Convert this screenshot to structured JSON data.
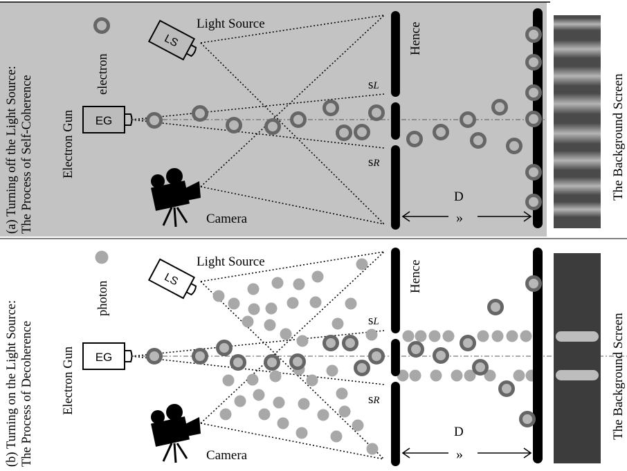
{
  "panels": [
    {
      "id": "a",
      "caption_line1": "(a) Turning off the Light Source:",
      "caption_line2": "The Process of Self-Coherence",
      "gun_label": "Electron Gun",
      "legend_label": "electron",
      "legend_kind": "electron",
      "gun_box": "EG",
      "ls_box": "LS",
      "light_source_label": "Light Source",
      "hence_label": "Hence",
      "slit_left": "s",
      "slit_left_sub": "L",
      "slit_right": "s",
      "slit_right_sub": "R",
      "camera_label": "Camera",
      "distance_label": "D",
      "distance_mark": "»",
      "screen_label": "The Background Screen",
      "background": "#c3c3c3",
      "screen_pattern": "fringes"
    },
    {
      "id": "b",
      "caption_line1": "(b) Turning on the Light Source:",
      "caption_line2": "The Process of Decoherence",
      "gun_label": "Electron Gun",
      "legend_label": "photon",
      "legend_kind": "photon",
      "gun_box": "EG",
      "ls_box": "LS",
      "light_source_label": "Light Source",
      "hence_label": "Hence",
      "slit_left": "s",
      "slit_left_sub": "L",
      "slit_right": "s",
      "slit_right_sub": "R",
      "camera_label": "Camera",
      "distance_label": "D",
      "distance_mark": "»",
      "screen_label": "The Background Screen",
      "background": "#ffffff",
      "screen_pattern": "two-bands"
    }
  ],
  "colors": {
    "electron_ring": "#666666",
    "electron_core": "#b8b8b8",
    "photon": "#a8a8a8",
    "barrier": "#000000",
    "screen_dark": "#3c3c3c"
  }
}
